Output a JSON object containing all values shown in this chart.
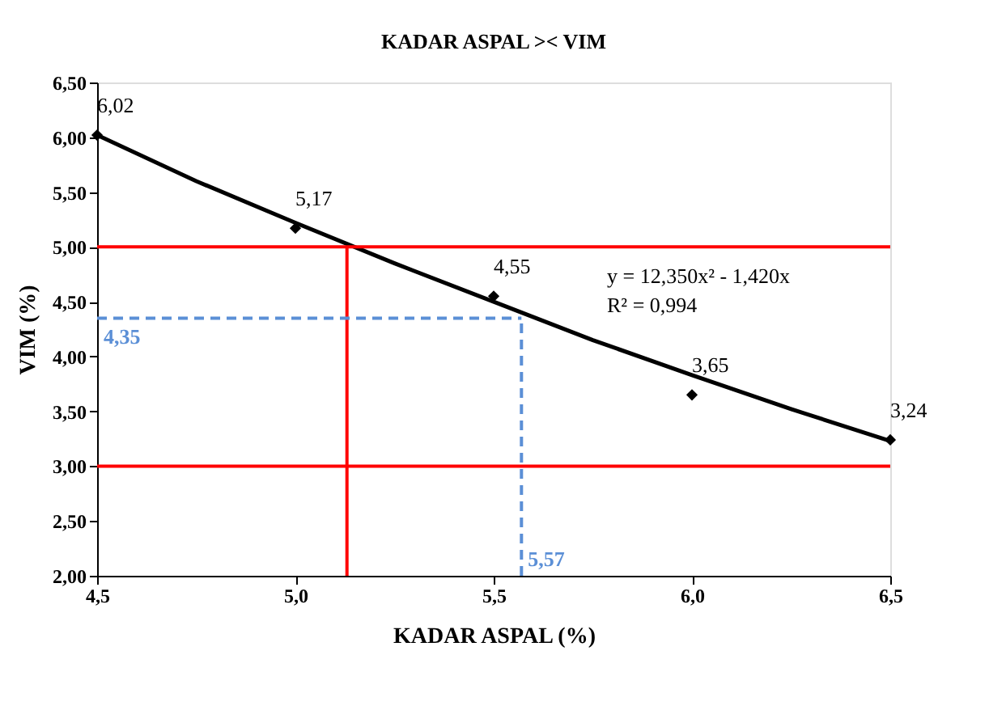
{
  "chart_data": {
    "type": "scatter",
    "title": "KADAR ASPAL >< VIM",
    "xlabel": "KADAR ASPAL (%)",
    "ylabel": "VIM (%)",
    "x": [
      4.5,
      5.0,
      5.5,
      6.0,
      6.5
    ],
    "series": [
      {
        "type": "scatter",
        "color": "#000000",
        "marker": "diamond",
        "values": [
          6.02,
          5.17,
          4.55,
          3.65,
          3.24
        ],
        "value_labels": [
          "6,02",
          "5,17",
          "4,55",
          "3,65",
          "3,24"
        ]
      },
      {
        "type": "line",
        "color": "#000000",
        "marker": "none",
        "x": [
          4.5,
          4.75,
          5.0,
          5.25,
          5.5,
          5.75,
          6.0,
          6.25,
          6.5
        ],
        "values": [
          6.02,
          5.6,
          5.22,
          4.85,
          4.5,
          4.15,
          3.83,
          3.52,
          3.23
        ]
      }
    ],
    "xlim": [
      4.5,
      6.5
    ],
    "xticks": [
      {
        "value": 4.5,
        "label": "4,5"
      },
      {
        "value": 5.0,
        "label": "5,0"
      },
      {
        "value": 5.5,
        "label": "5,5"
      },
      {
        "value": 6.0,
        "label": "6,0"
      },
      {
        "value": 6.5,
        "label": "6,5"
      }
    ],
    "ylim": [
      2.0,
      6.5
    ],
    "yticks": [
      {
        "value": 2.0,
        "label": "2,00"
      },
      {
        "value": 2.5,
        "label": "2,50"
      },
      {
        "value": 3.0,
        "label": "3,00"
      },
      {
        "value": 3.5,
        "label": "3,50"
      },
      {
        "value": 4.0,
        "label": "4,00"
      },
      {
        "value": 4.5,
        "label": "4,50"
      },
      {
        "value": 5.0,
        "label": "5,00"
      },
      {
        "value": 5.5,
        "label": "5,50"
      },
      {
        "value": 6.0,
        "label": "6,00"
      },
      {
        "value": 6.5,
        "label": "6,50"
      }
    ],
    "ref_lines": [
      {
        "axis": "y",
        "value": 5.0,
        "color": "#ff0000",
        "line_style": "solid"
      },
      {
        "axis": "y",
        "value": 3.0,
        "color": "#ff0000",
        "line_style": "solid"
      },
      {
        "axis": "x",
        "value": 5.13,
        "color": "#ff0000",
        "line_style": "solid"
      },
      {
        "axis": "y",
        "value": 4.35,
        "label": "4,35",
        "color": "#5b8fd6",
        "line_style": "dashed"
      },
      {
        "axis": "x",
        "value": 5.57,
        "label": "5,57",
        "color": "#5b8fd6",
        "line_style": "dashed"
      }
    ],
    "annotations": [
      "y = 12,350x² - 1,420x",
      "R² = 0,994"
    ],
    "grid": false
  }
}
